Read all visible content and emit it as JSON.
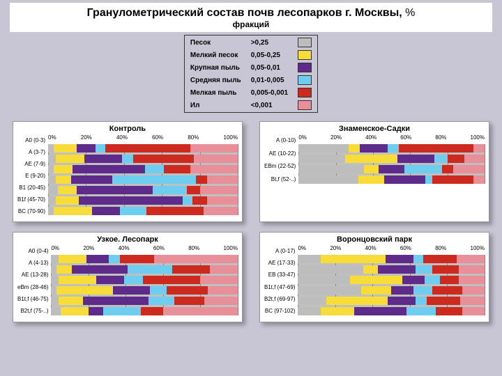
{
  "title_main": "Гранулометрический состав почв лесопарков г. Москвы, ",
  "title_pct": "%",
  "subtitle": "фракций",
  "colors": {
    "sand": "#bdbdbd",
    "fine_sand": "#f8dc3a",
    "coarse_dust": "#5e2b8a",
    "medium_dust": "#6fcef0",
    "fine_dust": "#cc2a1f",
    "silt": "#e98f9a",
    "plot_bg": "#c0c0c0",
    "grid": "#888888"
  },
  "legend": [
    {
      "label": "Песок",
      "range": ">0,25",
      "key": "sand"
    },
    {
      "label": "Мелкий песок",
      "range": "0,05-0,25",
      "key": "fine_sand"
    },
    {
      "label": "Крупная пыль",
      "range": "0,05-0,01",
      "key": "coarse_dust"
    },
    {
      "label": "Средняя пыль",
      "range": "0,01-0,005",
      "key": "medium_dust"
    },
    {
      "label": "Мелкая пыль",
      "range": "0,005-0,001",
      "key": "fine_dust"
    },
    {
      "label": "Ил",
      "range": "<0,001",
      "key": "silt"
    }
  ],
  "axis_ticks": [
    "0%",
    "20%",
    "40%",
    "60%",
    "80%",
    "100%"
  ],
  "panels": [
    {
      "title": "Контроль",
      "rows": [
        {
          "label": "A0 (0-3)",
          "seg": [
            3,
            12,
            10,
            5,
            45,
            25
          ]
        },
        {
          "label": "A (3-7)",
          "seg": [
            4,
            15,
            20,
            6,
            32,
            23
          ]
        },
        {
          "label": "AE (7-9)",
          "seg": [
            3,
            10,
            38,
            10,
            14,
            25
          ]
        },
        {
          "label": "E (9-20)",
          "seg": [
            4,
            8,
            22,
            44,
            6,
            16
          ]
        },
        {
          "label": "B1 (20-45)",
          "seg": [
            5,
            10,
            40,
            18,
            7,
            20
          ]
        },
        {
          "label": "B1f (45-70)",
          "seg": [
            4,
            12,
            55,
            5,
            8,
            16
          ]
        },
        {
          "label": "BC (70-90)",
          "seg": [
            3,
            20,
            15,
            14,
            30,
            18
          ]
        }
      ]
    },
    {
      "title": "Знаменское-Садки",
      "rows": [
        {
          "label": "A (0-10)",
          "seg": [
            27,
            6,
            15,
            6,
            40,
            6
          ]
        },
        {
          "label": "AE (10-22)",
          "seg": [
            25,
            28,
            20,
            7,
            9,
            11
          ]
        },
        {
          "label": "EBm (22-52)",
          "seg": [
            35,
            8,
            14,
            20,
            6,
            17
          ]
        },
        {
          "label": "Bt,f (52-..)",
          "seg": [
            32,
            14,
            22,
            4,
            22,
            6
          ]
        }
      ]
    },
    {
      "title": "Узкое. Лесопарк",
      "rows": [
        {
          "label": "A0 (0-4)",
          "seg": [
            4,
            15,
            12,
            6,
            18,
            45
          ]
        },
        {
          "label": "A (4-13)",
          "seg": [
            3,
            8,
            30,
            24,
            20,
            15
          ]
        },
        {
          "label": "AE (13-28)",
          "seg": [
            4,
            20,
            15,
            10,
            31,
            20
          ]
        },
        {
          "label": "eBm (28-46)",
          "seg": [
            3,
            30,
            20,
            9,
            22,
            16
          ]
        },
        {
          "label": "B1t,f (46-75)",
          "seg": [
            4,
            13,
            35,
            14,
            16,
            18
          ]
        },
        {
          "label": "B2t,f (75-..)",
          "seg": [
            5,
            15,
            8,
            20,
            12,
            40
          ]
        }
      ]
    },
    {
      "title": "Воронцовский парк",
      "rows": [
        {
          "label": "A (0-17)",
          "seg": [
            12,
            35,
            15,
            5,
            18,
            15
          ]
        },
        {
          "label": "AE (17-33)",
          "seg": [
            35,
            8,
            20,
            9,
            14,
            14
          ]
        },
        {
          "label": "EB (33-47)",
          "seg": [
            28,
            28,
            12,
            8,
            10,
            14
          ]
        },
        {
          "label": "B1t,f (47-69)",
          "seg": [
            34,
            16,
            12,
            10,
            16,
            12
          ]
        },
        {
          "label": "B2t,f (69-97)",
          "seg": [
            15,
            33,
            15,
            6,
            18,
            13
          ]
        },
        {
          "label": "BC (97-102)",
          "seg": [
            12,
            18,
            28,
            16,
            14,
            12
          ]
        }
      ]
    }
  ]
}
